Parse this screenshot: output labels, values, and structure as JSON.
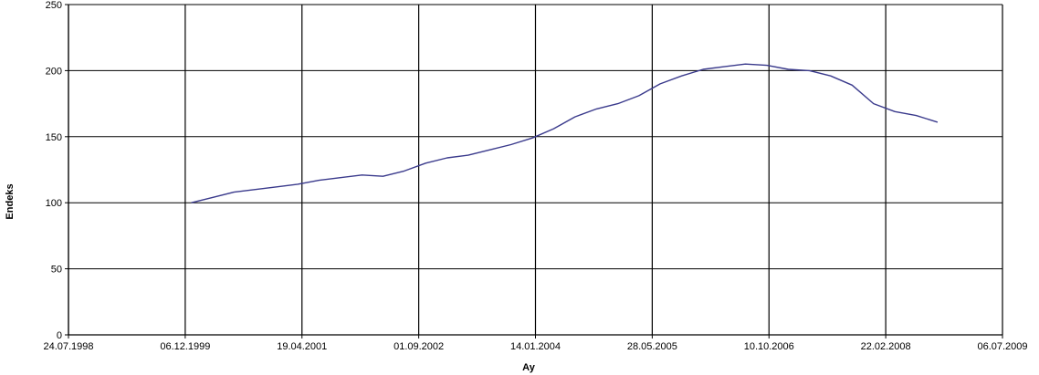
{
  "chart_data": {
    "type": "line",
    "title": "",
    "xlabel": "Ay",
    "ylabel": "Endeks",
    "x_ticks": [
      "24.07.1998",
      "06.12.1999",
      "19.04.2001",
      "01.09.2002",
      "14.01.2004",
      "28.05.2005",
      "10.10.2006",
      "22.02.2008",
      "06.07.2009"
    ],
    "y_ticks": [
      0,
      50,
      100,
      150,
      200,
      250
    ],
    "ylim": [
      0,
      250
    ],
    "xlim": [
      "1998-07-24",
      "2009-07-06"
    ],
    "grid": true,
    "legend": "none",
    "colors": {
      "line": "#3a3a8c",
      "grid": "#000000"
    },
    "series": [
      {
        "x": [
          "2000-01-01",
          "2000-04-01",
          "2000-07-01",
          "2000-10-01",
          "2001-01-01",
          "2001-04-01",
          "2001-07-01",
          "2001-10-01",
          "2002-01-01",
          "2002-04-01",
          "2002-07-01",
          "2002-10-01",
          "2003-01-01",
          "2003-04-01",
          "2003-07-01",
          "2003-10-01",
          "2004-01-01",
          "2004-04-01",
          "2004-07-01",
          "2004-10-01",
          "2005-01-01",
          "2005-04-01",
          "2005-07-01",
          "2005-10-01",
          "2006-01-01",
          "2006-04-01",
          "2006-07-01",
          "2006-10-01",
          "2007-01-01",
          "2007-04-01",
          "2007-07-01",
          "2007-10-01",
          "2008-01-01",
          "2008-04-01",
          "2008-07-01",
          "2008-10-01"
        ],
        "values": [
          100,
          104,
          108,
          110,
          112,
          114,
          117,
          119,
          121,
          120,
          124,
          130,
          134,
          136,
          140,
          144,
          149,
          156,
          165,
          171,
          175,
          181,
          190,
          196,
          201,
          203,
          205,
          204,
          201,
          200,
          196,
          189,
          175,
          169,
          166,
          161
        ]
      }
    ]
  }
}
